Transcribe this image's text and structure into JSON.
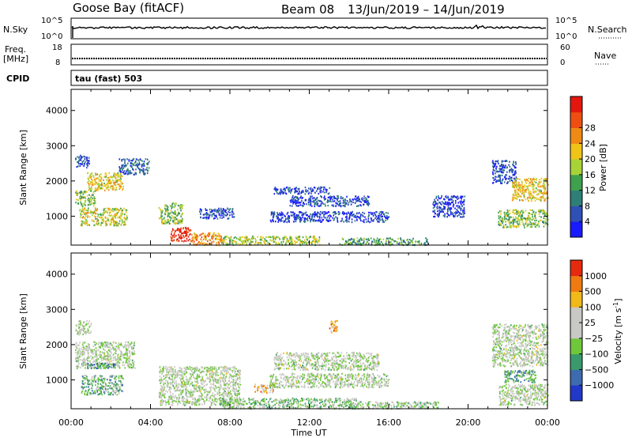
{
  "header": {
    "station": "Goose Bay (fitACF)",
    "beam": "Beam 08",
    "dates": "13/Jun/2019 – 14/Jun/2019"
  },
  "panels": {
    "nsky": {
      "left_label": "N.Sky",
      "right_label": "N.Search",
      "left_ticks": [
        "10^5",
        "10^0"
      ],
      "right_ticks": [
        "10^5",
        "10^0"
      ]
    },
    "freq": {
      "left_label_1": "Freq.",
      "left_label_2": "[MHz]",
      "right_label": "Nave",
      "left_ticks": [
        "18",
        "8"
      ],
      "right_ticks": [
        "60",
        "0"
      ]
    },
    "cpid": {
      "label": "CPID",
      "value": "tau (fast) 503"
    }
  },
  "chart_data": [
    {
      "type": "heatmap",
      "name": "power",
      "xlabel": "",
      "ylabel": "Slant Range [km]",
      "x_range": [
        "00:00",
        "00:00"
      ],
      "ylim": [
        180,
        4600
      ],
      "y_ticks": [
        1000,
        2000,
        3000,
        4000
      ],
      "colorbar": {
        "label": "Power [dB]",
        "ticks": [
          "4",
          "8",
          "12",
          "16",
          "20",
          "24",
          "28"
        ],
        "colors": [
          "#1a1aff",
          "#2f50b5",
          "#2d7f78",
          "#3fa04e",
          "#a8d337",
          "#f0c319",
          "#ef8a14",
          "#ee4f10",
          "#e3170e"
        ]
      },
      "bands": [
        {
          "t0": 0.2,
          "t1": 0.9,
          "r0": 2400,
          "r1": 2750,
          "level": 0.15
        },
        {
          "t0": 0.2,
          "t1": 1.2,
          "r0": 1300,
          "r1": 1750,
          "level": 0.45
        },
        {
          "t0": 0.8,
          "t1": 2.6,
          "r0": 1750,
          "r1": 2250,
          "level": 0.6
        },
        {
          "t0": 2.4,
          "t1": 3.9,
          "r0": 2200,
          "r1": 2650,
          "level": 0.2
        },
        {
          "t0": 0.4,
          "t1": 2.8,
          "r0": 750,
          "r1": 1250,
          "level": 0.55
        },
        {
          "t0": 4.4,
          "t1": 5.6,
          "r0": 800,
          "r1": 1400,
          "level": 0.45
        },
        {
          "t0": 5.0,
          "t1": 6.0,
          "r0": 300,
          "r1": 700,
          "level": 0.95
        },
        {
          "t0": 6.0,
          "t1": 7.6,
          "r0": 200,
          "r1": 550,
          "level": 0.7
        },
        {
          "t0": 6.4,
          "t1": 8.2,
          "r0": 950,
          "r1": 1250,
          "level": 0.15
        },
        {
          "t0": 7.6,
          "t1": 12.5,
          "r0": 200,
          "r1": 450,
          "level": 0.5
        },
        {
          "t0": 10.2,
          "t1": 13.0,
          "r0": 1650,
          "r1": 1850,
          "level": 0.1
        },
        {
          "t0": 11.0,
          "t1": 15.0,
          "r0": 1300,
          "r1": 1600,
          "level": 0.15
        },
        {
          "t0": 10.0,
          "t1": 16.0,
          "r0": 850,
          "r1": 1150,
          "level": 0.12
        },
        {
          "t0": 13.5,
          "t1": 18.0,
          "r0": 200,
          "r1": 400,
          "level": 0.35
        },
        {
          "t0": 18.2,
          "t1": 19.8,
          "r0": 1000,
          "r1": 1600,
          "level": 0.1
        },
        {
          "t0": 21.2,
          "t1": 22.4,
          "r0": 1950,
          "r1": 2600,
          "level": 0.15
        },
        {
          "t0": 22.2,
          "t1": 24.0,
          "r0": 1450,
          "r1": 2100,
          "level": 0.6
        },
        {
          "t0": 21.5,
          "t1": 24.0,
          "r0": 700,
          "r1": 1200,
          "level": 0.45
        }
      ]
    },
    {
      "type": "heatmap",
      "name": "velocity",
      "xlabel": "Time UT",
      "ylabel": "Slant Range [km]",
      "x_ticks": [
        "00:00",
        "04:00",
        "08:00",
        "12:00",
        "16:00",
        "20:00",
        "00:00"
      ],
      "ylim": [
        180,
        4600
      ],
      "y_ticks": [
        1000,
        2000,
        3000,
        4000
      ],
      "colorbar": {
        "label": "Velocity [m s^-1]",
        "ticks": [
          "1000",
          "500",
          "100",
          "25",
          "−25",
          "−100",
          "−500",
          "−1000"
        ],
        "colors": [
          "#2238c9",
          "#3d6bb0",
          "#3a9a6c",
          "#6fc83a",
          "#c8c8c4",
          "#c8c8c4",
          "#f0b818",
          "#ef7a12",
          "#e62a0e"
        ]
      },
      "bands": [
        {
          "t0": 0.2,
          "t1": 1.0,
          "r0": 2300,
          "r1": 2700,
          "level": 0.5
        },
        {
          "t0": 0.2,
          "t1": 3.2,
          "r0": 1350,
          "r1": 2100,
          "level": 0.5
        },
        {
          "t0": 0.8,
          "t1": 2.2,
          "r0": 1350,
          "r1": 1500,
          "level": 0.25
        },
        {
          "t0": 0.5,
          "t1": 2.6,
          "r0": 600,
          "r1": 1150,
          "level": 0.35
        },
        {
          "t0": 4.4,
          "t1": 8.5,
          "r0": 300,
          "r1": 1400,
          "level": 0.5
        },
        {
          "t0": 9.2,
          "t1": 10.2,
          "r0": 650,
          "r1": 900,
          "level": 0.72
        },
        {
          "t0": 7.5,
          "t1": 14.5,
          "r0": 200,
          "r1": 500,
          "level": 0.42
        },
        {
          "t0": 10.2,
          "t1": 15.5,
          "r0": 1300,
          "r1": 1800,
          "level": 0.5
        },
        {
          "t0": 10.0,
          "t1": 16.0,
          "r0": 800,
          "r1": 1200,
          "level": 0.5
        },
        {
          "t0": 13.0,
          "t1": 13.4,
          "r0": 2350,
          "r1": 2700,
          "level": 0.8
        },
        {
          "t0": 14.0,
          "t1": 18.5,
          "r0": 200,
          "r1": 400,
          "level": 0.45
        },
        {
          "t0": 21.2,
          "t1": 24.0,
          "r0": 1400,
          "r1": 2600,
          "level": 0.5
        },
        {
          "t0": 21.8,
          "t1": 23.4,
          "r0": 950,
          "r1": 1300,
          "level": 0.3
        },
        {
          "t0": 21.5,
          "t1": 24.0,
          "r0": 300,
          "r1": 900,
          "level": 0.5
        }
      ]
    }
  ]
}
